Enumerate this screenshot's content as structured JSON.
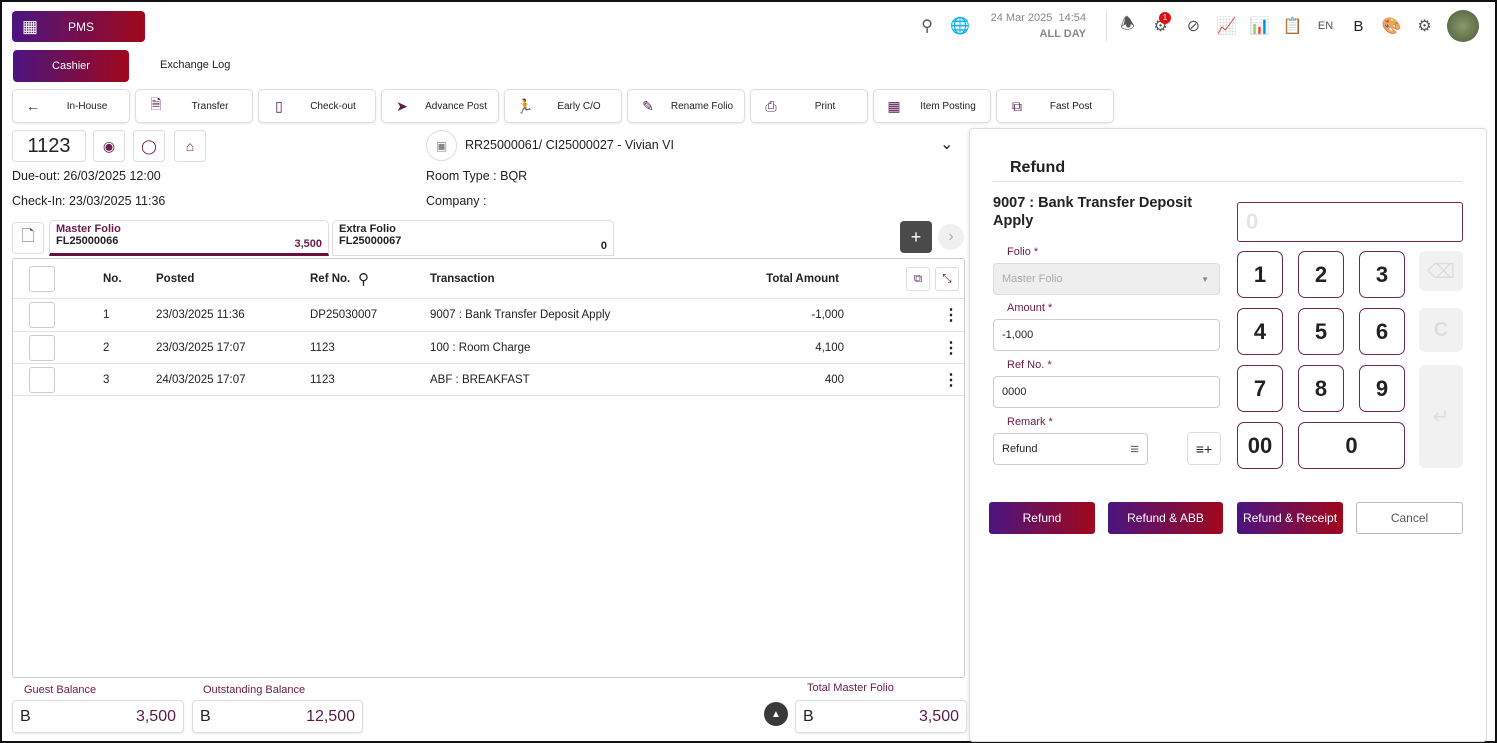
{
  "app": {
    "title": "PMS",
    "building_icon": "building-icon"
  },
  "tabs": [
    {
      "label": "Cashier",
      "active": true
    },
    {
      "label": "Exchange Log",
      "active": false
    }
  ],
  "header": {
    "date": "24 Mar 2025",
    "time": "14:54",
    "shift": "ALL DAY",
    "notification_count": "1",
    "language": "EN",
    "currency": "B"
  },
  "toolbar": [
    {
      "label": "In-House",
      "icon": "arrow-left-icon"
    },
    {
      "label": "Transfer",
      "icon": "document-icon"
    },
    {
      "label": "Check-out",
      "icon": "door-icon"
    },
    {
      "label": "Advance Post",
      "icon": "paper-plane-icon"
    },
    {
      "label": "Early C/O",
      "icon": "walking-icon"
    },
    {
      "label": "Rename Folio",
      "icon": "edit-icon"
    },
    {
      "label": "Print",
      "icon": "printer-icon"
    },
    {
      "label": "Item Posting",
      "icon": "register-icon"
    },
    {
      "label": "Fast Post",
      "icon": "copy-plus-icon"
    }
  ],
  "guest": {
    "room": "1123",
    "due_out": "Due-out: 26/03/2025 12:00",
    "check_in": "Check-In: 23/03/2025 11:36",
    "reservation": "RR25000061/ CI25000027  - Vivian VI",
    "room_type": "Room Type : BQR",
    "company": "Company :"
  },
  "folios": [
    {
      "name": "Master Folio",
      "number": "FL25000066",
      "amount": "3,500",
      "active": true
    },
    {
      "name": "Extra Folio",
      "number": "FL25000067",
      "amount": "0",
      "active": false
    }
  ],
  "table": {
    "headers": {
      "no": "No.",
      "posted": "Posted",
      "ref": "Ref No.",
      "transaction": "Transaction",
      "amount": "Total Amount"
    },
    "rows": [
      {
        "no": "1",
        "posted": "23/03/2025 11:36",
        "ref": "DP25030007",
        "transaction": "9007 : Bank Transfer Deposit Apply",
        "amount": "-1,000"
      },
      {
        "no": "2",
        "posted": "23/03/2025 17:07",
        "ref": "1123",
        "transaction": "100 : Room Charge",
        "amount": "4,100"
      },
      {
        "no": "3",
        "posted": "24/03/2025 17:07",
        "ref": "1123",
        "transaction": "ABF : BREAKFAST",
        "amount": "400"
      }
    ]
  },
  "footer": {
    "guest_balance": {
      "label": "Guest Balance",
      "currency": "B",
      "value": "3,500"
    },
    "outstanding_balance": {
      "label": "Outstanding Balance",
      "currency": "B",
      "value": "12,500"
    },
    "total_master_folio": {
      "label": "Total Master Folio",
      "currency": "B",
      "value": "3,500"
    }
  },
  "refund": {
    "title": "Refund",
    "transaction": "9007 : Bank Transfer Deposit Apply",
    "folio_label": "Folio *",
    "folio_value": "Master Folio",
    "amount_label": "Amount *",
    "amount_value": "-1,000",
    "ref_label": "Ref No. *",
    "ref_value": "0000",
    "remark_label": "Remark *",
    "remark_value": "Refund",
    "display_placeholder": "0",
    "keys": [
      "1",
      "2",
      "3",
      "4",
      "5",
      "6",
      "7",
      "8",
      "9",
      "00",
      "0"
    ],
    "clear_key": "C",
    "buttons": {
      "refund": "Refund",
      "refund_abb": "Refund & ABB",
      "refund_receipt": "Refund & Receipt",
      "cancel": "Cancel"
    }
  },
  "colors": {
    "brand_start": "#4b1580",
    "brand_end": "#a0081c",
    "label": "#6a1a4a"
  }
}
